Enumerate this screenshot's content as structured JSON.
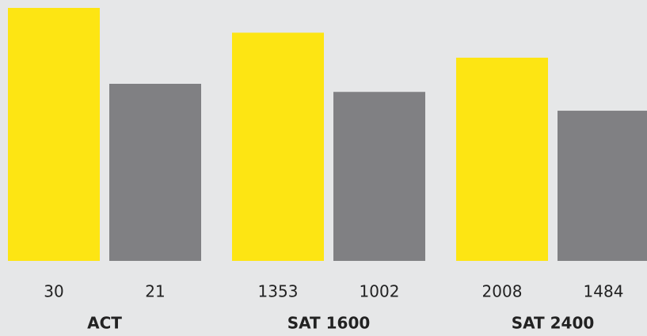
{
  "chart_data": [
    {
      "type": "bar",
      "title": "ACT",
      "values": [
        30,
        21
      ],
      "colors": [
        "#fde513",
        "#808083"
      ],
      "ylim": [
        0,
        30
      ]
    },
    {
      "type": "bar",
      "title": "SAT 1600",
      "values": [
        1353,
        1002
      ],
      "colors": [
        "#fde513",
        "#808083"
      ],
      "ylim": [
        0,
        1500
      ]
    },
    {
      "type": "bar",
      "title": "SAT 2400",
      "values": [
        2008,
        1484
      ],
      "colors": [
        "#fde513",
        "#808083"
      ],
      "ylim": [
        0,
        2500
      ]
    }
  ]
}
